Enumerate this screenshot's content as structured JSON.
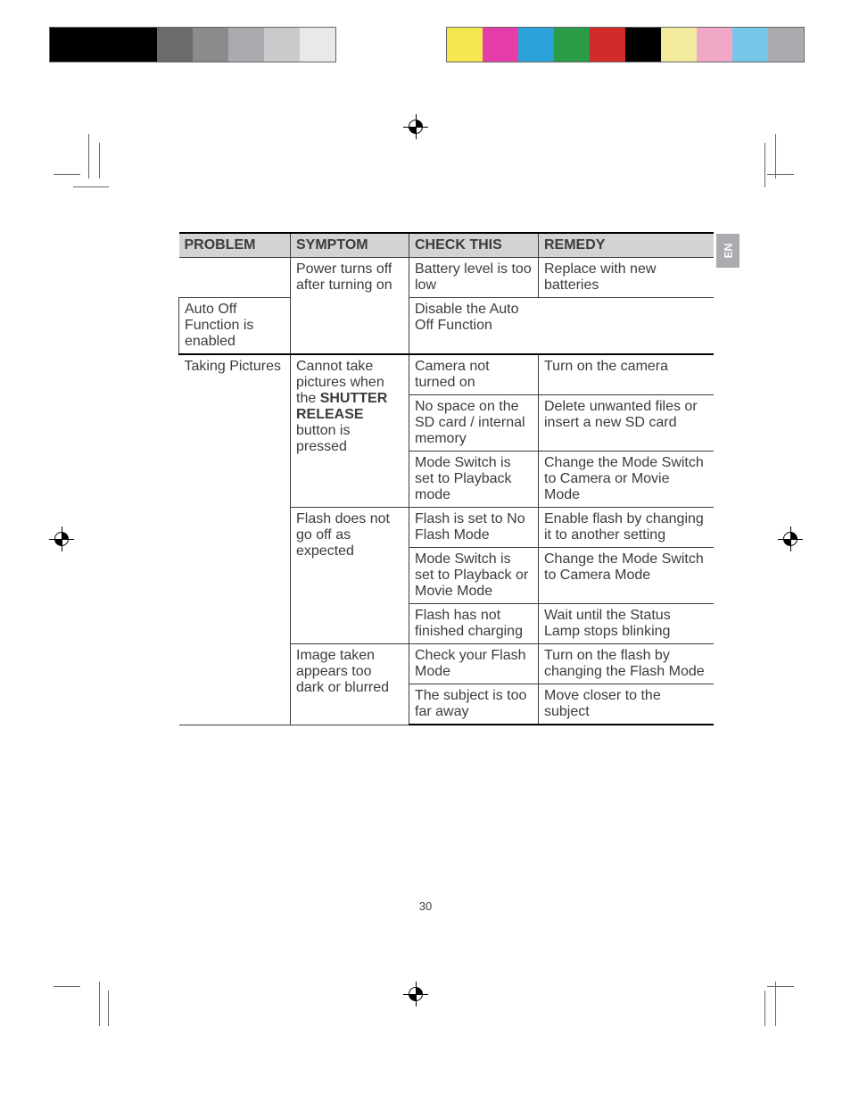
{
  "swatches_left": [
    "#000000",
    "#000000",
    "#000000",
    "#6a6b6d",
    "#8a8b8d",
    "#a9abae",
    "#c9cacb",
    "#e9e9ea"
  ],
  "swatches_right": [
    "#f5e84f",
    "#e43ca8",
    "#2aa1d8",
    "#2a9c47",
    "#d32a2a",
    "#000000",
    "#f2ea9d",
    "#f1a8c6",
    "#76c6ea",
    "#a9abae"
  ],
  "side_tab": "EN",
  "page_number": "30",
  "headers": [
    "PROBLEM",
    "SYMPTOM",
    "CHECK THIS",
    "REMEDY"
  ],
  "rows": [
    {
      "problem": "",
      "symptom": "Power turns off after turning on",
      "check": "Battery level is too low",
      "remedy": "Replace with new batteries",
      "prob_rowspan": 1,
      "sym_rowspan": 2,
      "section": false
    },
    {
      "check": "Auto Off Function is enabled",
      "remedy": "Disable the Auto Off Function"
    },
    {
      "problem": "Taking Pictures",
      "symptom_html": "Cannot take pictures when the <b>SHUTTER RELEASE</b> button is pressed",
      "check": "Camera not turned on",
      "remedy": "Turn on the camera",
      "prob_rowspan": 8,
      "sym_rowspan": 3,
      "section": true
    },
    {
      "check": "No space on the SD card / internal memory",
      "remedy": "Delete unwanted files or insert a new SD card"
    },
    {
      "check": "Mode Switch is set to Playback mode",
      "remedy": "Change the Mode Switch to Camera or Movie Mode"
    },
    {
      "symptom": "Flash does not go off as expected",
      "check": "Flash is set to No Flash Mode",
      "remedy": "Enable flash by changing it to another setting",
      "sym_rowspan": 3
    },
    {
      "check": "Mode Switch is set to Playback or Movie Mode",
      "remedy": "Change the Mode Switch to Camera Mode"
    },
    {
      "check": "Flash has not finished charging",
      "remedy": "Wait until the Status Lamp stops blinking"
    },
    {
      "symptom": "Image taken appears too dark or blurred",
      "check": "Check your Flash Mode",
      "remedy": "Turn on the flash by changing the Flash Mode",
      "sym_rowspan": 2
    },
    {
      "check": "The subject is too far away",
      "remedy": "Move closer to the subject"
    }
  ]
}
